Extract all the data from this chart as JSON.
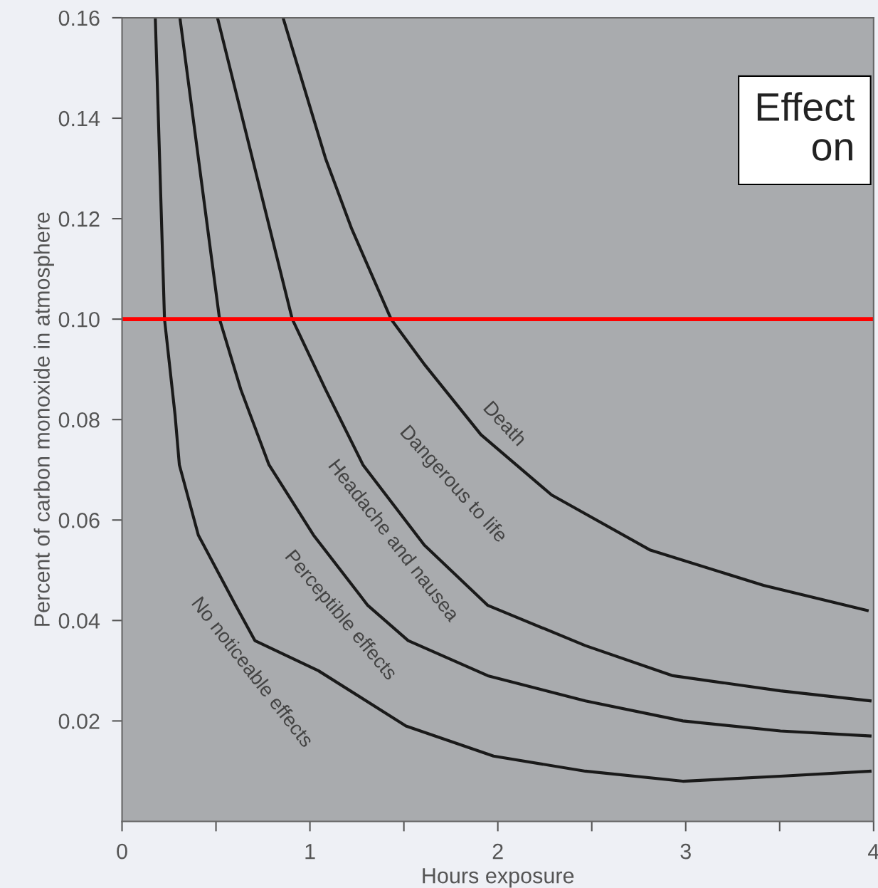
{
  "chart_data": {
    "type": "line",
    "xlabel": "Hours exposure",
    "ylabel": "Percent of carbon monoxide in atmosphere",
    "xlim": [
      0,
      4
    ],
    "ylim": [
      0,
      0.16
    ],
    "xticks": [
      0,
      {
        "value": 0.5,
        "label": null
      },
      1,
      {
        "value": 1.5,
        "label": null
      },
      2,
      {
        "value": 2.5,
        "label": null
      },
      3,
      {
        "value": 3.5,
        "label": null
      },
      4
    ],
    "yticks": [
      0.02,
      0.04,
      0.06,
      0.08,
      {
        "value": 0.1,
        "label": "0.10"
      },
      0.12,
      0.14,
      0.16
    ],
    "grid": false,
    "legend": false,
    "marker": "none",
    "line_style": "solid",
    "series": [
      {
        "color": "#1a1a1a",
        "x": [
          0.177,
          0.226,
          0.282,
          0.305,
          0.406,
          0.605,
          0.707,
          1.045,
          1.511,
          1.977,
          2.466,
          2.985,
          3.504,
          3.981
        ],
        "values": [
          0.16,
          0.1,
          0.081,
          0.071,
          0.057,
          0.043,
          0.036,
          0.03,
          0.019,
          0.013,
          0.01,
          0.008,
          0.009,
          0.01
        ]
      },
      {
        "color": "#1a1a1a",
        "x": [
          0.308,
          0.519,
          0.632,
          0.782,
          1.019,
          1.308,
          1.523,
          1.947,
          2.466,
          2.985,
          3.504,
          3.981
        ],
        "values": [
          0.16,
          0.1,
          0.086,
          0.071,
          0.057,
          0.043,
          0.036,
          0.029,
          0.024,
          0.02,
          0.018,
          0.017
        ]
      },
      {
        "color": "#1a1a1a",
        "x": [
          0.508,
          0.906,
          1.083,
          1.282,
          1.609,
          1.947,
          2.466,
          2.932,
          3.504,
          3.981
        ],
        "values": [
          0.16,
          0.1,
          0.086,
          0.071,
          0.055,
          0.043,
          0.035,
          0.029,
          0.026,
          0.024
        ]
      },
      {
        "color": "#1a1a1a",
        "x": [
          0.857,
          1.083,
          1.222,
          1.432,
          1.609,
          1.91,
          2.286,
          2.812,
          3.414,
          3.966
        ],
        "values": [
          0.16,
          0.132,
          0.118,
          0.1,
          0.091,
          0.077,
          0.065,
          0.054,
          0.047,
          0.042
        ]
      }
    ],
    "ref_lines": [
      {
        "axis": "y",
        "value": 0.1,
        "color": "#ff0000",
        "line_style": "solid"
      }
    ],
    "annotations": [
      "No noticeable effects",
      "Perceptible effects",
      "Headache and nausea",
      "Dangerous to life",
      "Death",
      "Effect\non"
    ]
  }
}
